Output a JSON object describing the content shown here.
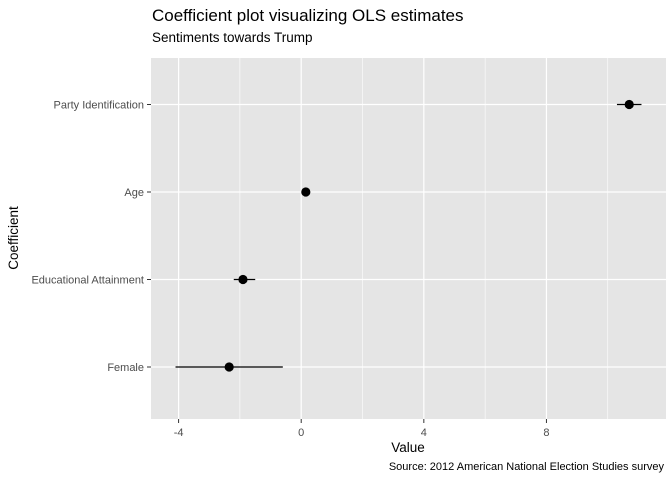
{
  "chart_data": {
    "type": "scatter",
    "title": "Coefficient plot visualizing OLS estimates",
    "subtitle": "Sentiments towards Trump",
    "xlabel": "Value",
    "ylabel": "Coefficient",
    "caption": "Source: 2012 American National Election Studies survey",
    "xlim": [
      -4.9,
      11.9
    ],
    "xticks": [
      -4,
      0,
      4,
      8
    ],
    "grid": true,
    "categories": [
      "Party Identification",
      "Age",
      "Educational Attainment",
      "Female"
    ],
    "estimates": [
      {
        "name": "Party Identification",
        "value": 10.7,
        "low": 10.3,
        "high": 11.1
      },
      {
        "name": "Age",
        "value": 0.15,
        "low": 0.1,
        "high": 0.2
      },
      {
        "name": "Educational Attainment",
        "value": -1.9,
        "low": -2.2,
        "high": -1.5
      },
      {
        "name": "Female",
        "value": -2.35,
        "low": -4.1,
        "high": -0.6
      }
    ],
    "colors": {
      "panel": "#e5e5e5",
      "grid": "#ffffff",
      "point": "#000000"
    }
  }
}
